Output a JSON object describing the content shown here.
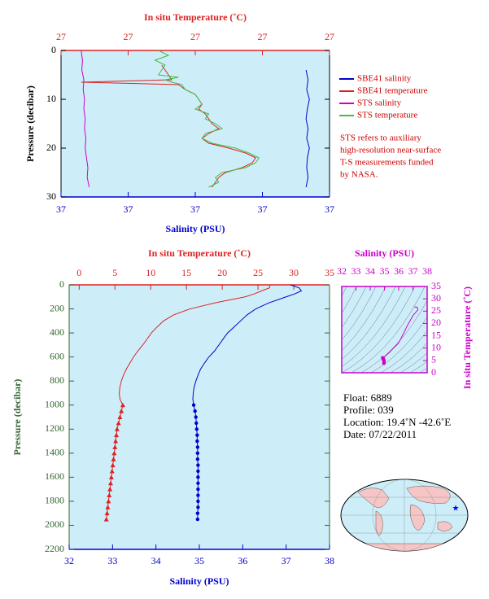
{
  "chart_data": [
    {
      "type": "profile",
      "x_label": "Salinity (PSU)",
      "x2_label": "In situ Temperature (˚C)",
      "y_label": "Pressure (decibar)",
      "xlim": [
        36.8,
        37.2
      ],
      "xticks": [
        {
          "value": 36.8,
          "label": "37"
        },
        {
          "value": 36.9,
          "label": "37"
        },
        {
          "value": 37.0,
          "label": "37"
        },
        {
          "value": 37.1,
          "label": "37"
        },
        {
          "value": 37.2,
          "label": "37"
        }
      ],
      "x2lim": [
        26.6,
        27.4
      ],
      "x2ticks": [
        {
          "value": 26.6,
          "label": "27"
        },
        {
          "value": 26.8,
          "label": "27"
        },
        {
          "value": 27.0,
          "label": "27"
        },
        {
          "value": 27.2,
          "label": "27"
        },
        {
          "value": 27.4,
          "label": "27"
        }
      ],
      "ylim": [
        0,
        30
      ],
      "y_inverted": true,
      "yticks": [
        0,
        10,
        20,
        30
      ],
      "legend": "right",
      "series": [
        {
          "name": "SBE41 salinity",
          "color": "#0000cc",
          "axis": "x",
          "pressure": [
            4,
            6,
            8,
            10,
            12,
            14,
            16,
            18,
            20,
            22,
            24,
            26,
            28
          ],
          "values": [
            37.165,
            37.168,
            37.166,
            37.17,
            37.167,
            37.165,
            37.168,
            37.166,
            37.17,
            37.167,
            37.166,
            37.168,
            37.165
          ]
        },
        {
          "name": "SBE41 temperature",
          "color": "#dd2222",
          "axis": "x2",
          "pressure": [
            3,
            4,
            5,
            6,
            6.5,
            7,
            8,
            9,
            10,
            11,
            12,
            13,
            14,
            15,
            16,
            17,
            18,
            19,
            20,
            21,
            22,
            23,
            24,
            25,
            26,
            27,
            28
          ],
          "values": [
            26.9,
            26.91,
            26.92,
            26.93,
            26.66,
            26.95,
            26.97,
            27.0,
            27.01,
            27.02,
            27.01,
            27.03,
            27.04,
            27.05,
            27.07,
            27.04,
            27.02,
            27.04,
            27.1,
            27.15,
            27.18,
            27.17,
            27.14,
            27.09,
            27.07,
            27.06,
            27.05
          ]
        },
        {
          "name": "STS salinity",
          "color": "#cc00cc",
          "axis": "x",
          "pressure": [
            0,
            2,
            4,
            6,
            8,
            10,
            12,
            14,
            16,
            18,
            20,
            22,
            24,
            26,
            28
          ],
          "values": [
            36.83,
            36.832,
            36.831,
            36.834,
            36.833,
            36.835,
            36.834,
            36.836,
            36.835,
            36.837,
            36.836,
            36.838,
            36.84,
            36.839,
            36.842
          ]
        },
        {
          "name": "STS temperature",
          "color": "#44bb44",
          "axis": "x2",
          "pressure": [
            0,
            1,
            2,
            3,
            4,
            5,
            5.5,
            6,
            6.5,
            7,
            8,
            9,
            10,
            11,
            12,
            13,
            14,
            15,
            16,
            17,
            18,
            19,
            20,
            21,
            22,
            23,
            24,
            25,
            26,
            27,
            28
          ],
          "values": [
            26.89,
            26.92,
            26.88,
            26.91,
            26.9,
            26.89,
            26.95,
            26.91,
            26.93,
            26.96,
            26.97,
            27.0,
            27.01,
            27.02,
            27.0,
            27.04,
            27.03,
            27.06,
            27.08,
            27.03,
            27.02,
            27.05,
            27.12,
            27.16,
            27.19,
            27.18,
            27.15,
            27.08,
            27.06,
            27.07,
            27.04
          ]
        }
      ],
      "note": [
        "STS refers to auxiliary",
        "high-resolution near-surface",
        "T-S measurements funded",
        "by NASA."
      ]
    },
    {
      "type": "profile",
      "x_label": "Salinity (PSU)",
      "x2_label": "In situ Temperature (˚C)",
      "y_label": "Pressure (decibar)",
      "xlim": [
        32,
        38
      ],
      "xticks": [
        32,
        33,
        34,
        35,
        36,
        37,
        38
      ],
      "x2lim": [
        -1.4,
        35
      ],
      "x2ticks": [
        0,
        5,
        10,
        15,
        20,
        25,
        30,
        35
      ],
      "ylim": [
        0,
        2200
      ],
      "y_inverted": true,
      "yticks": [
        0,
        200,
        400,
        600,
        800,
        1000,
        1200,
        1400,
        1600,
        1800,
        2000,
        2200
      ],
      "series": [
        {
          "color": "#0000cc",
          "axis": "x",
          "pressure": [
            0,
            25,
            50,
            75,
            100,
            150,
            200,
            250,
            300,
            350,
            400,
            450,
            500,
            550,
            600,
            650,
            700,
            750,
            800,
            850,
            900,
            950,
            1000
          ],
          "values": [
            37.1,
            37.3,
            37.35,
            37.2,
            37.0,
            36.6,
            36.3,
            36.1,
            35.95,
            35.8,
            35.65,
            35.55,
            35.45,
            35.35,
            35.22,
            35.12,
            35.03,
            34.97,
            34.92,
            34.88,
            34.86,
            34.85,
            34.87
          ]
        },
        {
          "color": "#dd2222",
          "axis": "x2",
          "pressure": [
            0,
            25,
            50,
            75,
            100,
            150,
            200,
            250,
            300,
            350,
            400,
            450,
            500,
            550,
            600,
            650,
            700,
            750,
            800,
            850,
            900,
            950,
            1000
          ],
          "values": [
            26.7,
            26.6,
            25.5,
            24.5,
            23.2,
            19.0,
            15.5,
            13.2,
            11.8,
            10.9,
            10.1,
            9.5,
            8.9,
            8.2,
            7.6,
            7.1,
            6.6,
            6.2,
            5.9,
            5.7,
            5.6,
            5.7,
            6.1
          ]
        },
        {
          "color": "#0000cc",
          "axis": "x",
          "marker": "circle",
          "pressure": [
            1000,
            1050,
            1100,
            1150,
            1200,
            1250,
            1300,
            1350,
            1400,
            1450,
            1500,
            1550,
            1600,
            1650,
            1700,
            1750,
            1800,
            1850,
            1900,
            1950
          ],
          "values": [
            34.87,
            34.9,
            34.92,
            34.93,
            34.94,
            34.95,
            34.95,
            34.96,
            34.96,
            34.96,
            34.97,
            34.97,
            34.97,
            34.97,
            34.97,
            34.97,
            34.97,
            34.97,
            34.96,
            34.96
          ]
        },
        {
          "color": "#dd2222",
          "axis": "x2",
          "marker": "triangle",
          "pressure": [
            1000,
            1050,
            1100,
            1150,
            1200,
            1250,
            1300,
            1350,
            1400,
            1450,
            1500,
            1550,
            1600,
            1650,
            1700,
            1750,
            1800,
            1850,
            1900,
            1950
          ],
          "values": [
            6.1,
            5.9,
            5.7,
            5.5,
            5.3,
            5.2,
            5.1,
            5.0,
            4.9,
            4.8,
            4.7,
            4.6,
            4.5,
            4.4,
            4.3,
            4.2,
            4.1,
            4.0,
            3.9,
            3.8
          ]
        }
      ]
    },
    {
      "type": "ts",
      "x_label": "Salinity (PSU)",
      "y_label": "In situ Temperature (˚C)",
      "color": "#cc00cc",
      "xlim": [
        32,
        38
      ],
      "xticks": [
        32,
        33,
        34,
        35,
        36,
        37,
        38
      ],
      "ylim": [
        0,
        35
      ],
      "yticks": [
        0,
        5,
        10,
        15,
        20,
        25,
        30,
        35
      ]
    }
  ],
  "info": [
    "Float:  6889",
    "Profile:  039",
    "Location:  19.4˚N  -42.6˚E",
    "Date:  07/22/2011"
  ]
}
